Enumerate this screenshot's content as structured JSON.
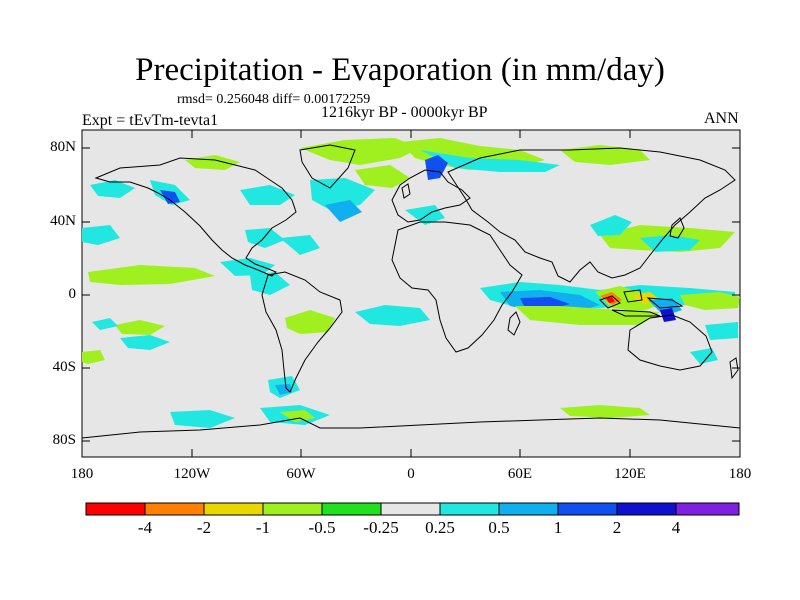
{
  "figure": {
    "title": "Precipitation - Evaporation (in mm/day)",
    "stats": "rmsd= 0.256048 diff= 0.00172259",
    "period": "1216kyr BP - 0000kyr BP",
    "experiment": "Expt = tEvTm-tevta1",
    "season": "ANN"
  },
  "axes": {
    "y_labels": [
      "80N",
      "40N",
      "0",
      "40S",
      "80S"
    ],
    "x_labels": [
      "180",
      "120W",
      "60W",
      "0",
      "60E",
      "120E",
      "180"
    ]
  },
  "colorbar": {
    "labels": [
      "-4",
      "-2",
      "-1",
      "-0.5",
      "-0.25",
      "0.25",
      "0.5",
      "1",
      "2",
      "4"
    ],
    "colors": [
      "#ff0000",
      "#ff8000",
      "#e8d800",
      "#a0f020",
      "#20e020",
      "#e6e6e6",
      "#20e8e0",
      "#10b0f0",
      "#1050f0",
      "#1010d0",
      "#8020e0"
    ]
  },
  "map_colors": {
    "ocean_background": "#e6e6e6",
    "coast": "#000000"
  }
}
